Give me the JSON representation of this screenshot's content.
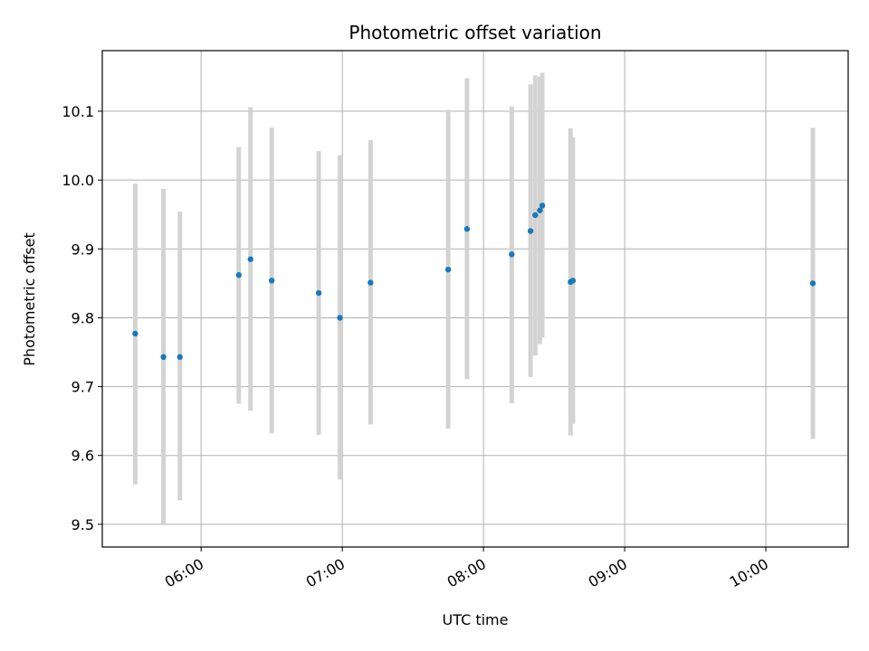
{
  "chart_data": {
    "type": "scatter",
    "title": "Photometric offset variation",
    "xlabel": "UTC time",
    "ylabel": "Photometric offset",
    "xlim": [
      "05:18",
      "10:35"
    ],
    "ylim": [
      9.467,
      10.188
    ],
    "x_ticks": [
      "06:00",
      "07:00",
      "08:00",
      "09:00",
      "10:00"
    ],
    "y_ticks": [
      "9.5",
      "9.6",
      "9.7",
      "9.8",
      "9.9",
      "10.0",
      "10.1"
    ],
    "grid": true,
    "colors": {
      "point": "#1f77b4",
      "errorbar": "#d3d3d3",
      "grid": "#b0b0b0"
    },
    "series": [
      {
        "points": [
          {
            "x": "05:32",
            "y": 9.777,
            "err_low": 9.558,
            "err_high": 9.995
          },
          {
            "x": "05:44",
            "y": 9.743,
            "err_low": 9.501,
            "err_high": 9.987
          },
          {
            "x": "05:51",
            "y": 9.743,
            "err_low": 9.535,
            "err_high": 9.954
          },
          {
            "x": "06:16",
            "y": 9.862,
            "err_low": 9.675,
            "err_high": 10.048
          },
          {
            "x": "06:21",
            "y": 9.885,
            "err_low": 9.665,
            "err_high": 10.106
          },
          {
            "x": "06:30",
            "y": 9.854,
            "err_low": 9.632,
            "err_high": 10.076
          },
          {
            "x": "06:50",
            "y": 9.836,
            "err_low": 9.63,
            "err_high": 10.042
          },
          {
            "x": "06:59",
            "y": 9.8,
            "err_low": 9.565,
            "err_high": 10.036
          },
          {
            "x": "07:12",
            "y": 9.851,
            "err_low": 9.645,
            "err_high": 10.058
          },
          {
            "x": "07:45",
            "y": 9.87,
            "err_low": 9.639,
            "err_high": 10.102
          },
          {
            "x": "07:53",
            "y": 9.929,
            "err_low": 9.711,
            "err_high": 10.148
          },
          {
            "x": "08:12",
            "y": 9.892,
            "err_low": 9.676,
            "err_high": 10.107
          },
          {
            "x": "08:20",
            "y": 9.926,
            "err_low": 9.714,
            "err_high": 10.139
          },
          {
            "x": "08:22",
            "y": 9.949,
            "err_low": 9.745,
            "err_high": 10.152
          },
          {
            "x": "08:24",
            "y": 9.956,
            "err_low": 9.762,
            "err_high": 10.15
          },
          {
            "x": "08:25",
            "y": 9.963,
            "err_low": 9.771,
            "err_high": 10.156
          },
          {
            "x": "08:37",
            "y": 9.852,
            "err_low": 9.629,
            "err_high": 10.075
          },
          {
            "x": "08:38",
            "y": 9.854,
            "err_low": 9.646,
            "err_high": 10.062
          },
          {
            "x": "10:20",
            "y": 9.85,
            "err_low": 9.624,
            "err_high": 10.076
          }
        ]
      }
    ]
  }
}
